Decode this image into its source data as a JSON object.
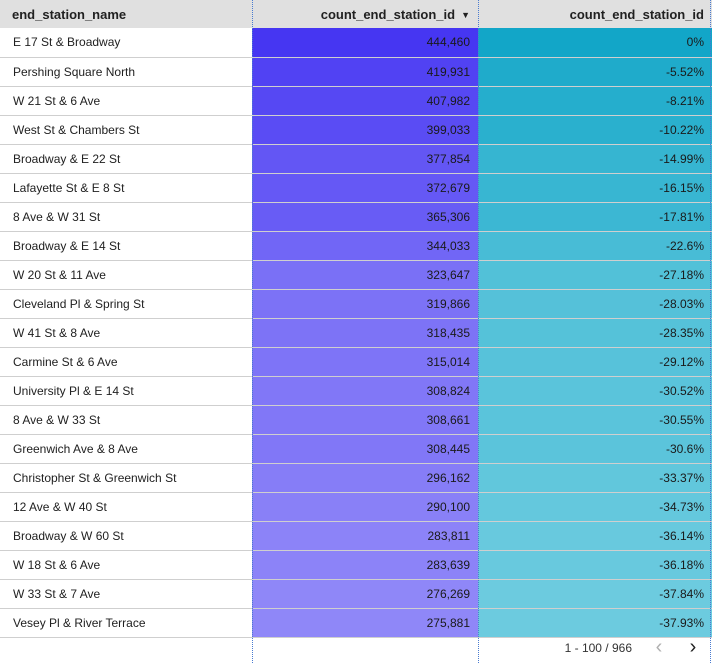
{
  "headers": {
    "col1": "end_station_name",
    "col2": "count_end_station_id",
    "col3": "count_end_station_id",
    "sort_icon": "sort-descending-icon"
  },
  "rows": [
    {
      "name": "E 17 St & Broadway",
      "count": "444,460",
      "pct": "0%"
    },
    {
      "name": "Pershing Square North",
      "count": "419,931",
      "pct": "-5.52%"
    },
    {
      "name": "W 21 St & 6 Ave",
      "count": "407,982",
      "pct": "-8.21%"
    },
    {
      "name": "West St & Chambers St",
      "count": "399,033",
      "pct": "-10.22%"
    },
    {
      "name": "Broadway & E 22 St",
      "count": "377,854",
      "pct": "-14.99%"
    },
    {
      "name": "Lafayette St & E 8 St",
      "count": "372,679",
      "pct": "-16.15%"
    },
    {
      "name": "8 Ave & W 31 St",
      "count": "365,306",
      "pct": "-17.81%"
    },
    {
      "name": "Broadway & E 14 St",
      "count": "344,033",
      "pct": "-22.6%"
    },
    {
      "name": "W 20 St & 11 Ave",
      "count": "323,647",
      "pct": "-27.18%"
    },
    {
      "name": "Cleveland Pl & Spring St",
      "count": "319,866",
      "pct": "-28.03%"
    },
    {
      "name": "W 41 St & 8 Ave",
      "count": "318,435",
      "pct": "-28.35%"
    },
    {
      "name": "Carmine St & 6 Ave",
      "count": "315,014",
      "pct": "-29.12%"
    },
    {
      "name": "University Pl & E 14 St",
      "count": "308,824",
      "pct": "-30.52%"
    },
    {
      "name": "8 Ave & W 33 St",
      "count": "308,661",
      "pct": "-30.55%"
    },
    {
      "name": "Greenwich Ave & 8 Ave",
      "count": "308,445",
      "pct": "-30.6%"
    },
    {
      "name": "Christopher St & Greenwich St",
      "count": "296,162",
      "pct": "-33.37%"
    },
    {
      "name": "12 Ave & W 40 St",
      "count": "290,100",
      "pct": "-34.73%"
    },
    {
      "name": "Broadway & W 60 St",
      "count": "283,811",
      "pct": "-36.14%"
    },
    {
      "name": "W 18 St & 6 Ave",
      "count": "283,639",
      "pct": "-36.18%"
    },
    {
      "name": "W 33 St & 7 Ave",
      "count": "276,269",
      "pct": "-37.84%"
    },
    {
      "name": "Vesey Pl & River Terrace",
      "count": "275,881",
      "pct": "-37.93%"
    }
  ],
  "colors": {
    "count_max": "#4636f2",
    "count_min": "#8f87f8",
    "pct_max": "#12a6c8",
    "pct_min": "#6ccbdf"
  },
  "pagination": {
    "label": "1 - 100 / 966",
    "prev_icon": "chevron-left-icon",
    "next_icon": "chevron-right-icon"
  }
}
